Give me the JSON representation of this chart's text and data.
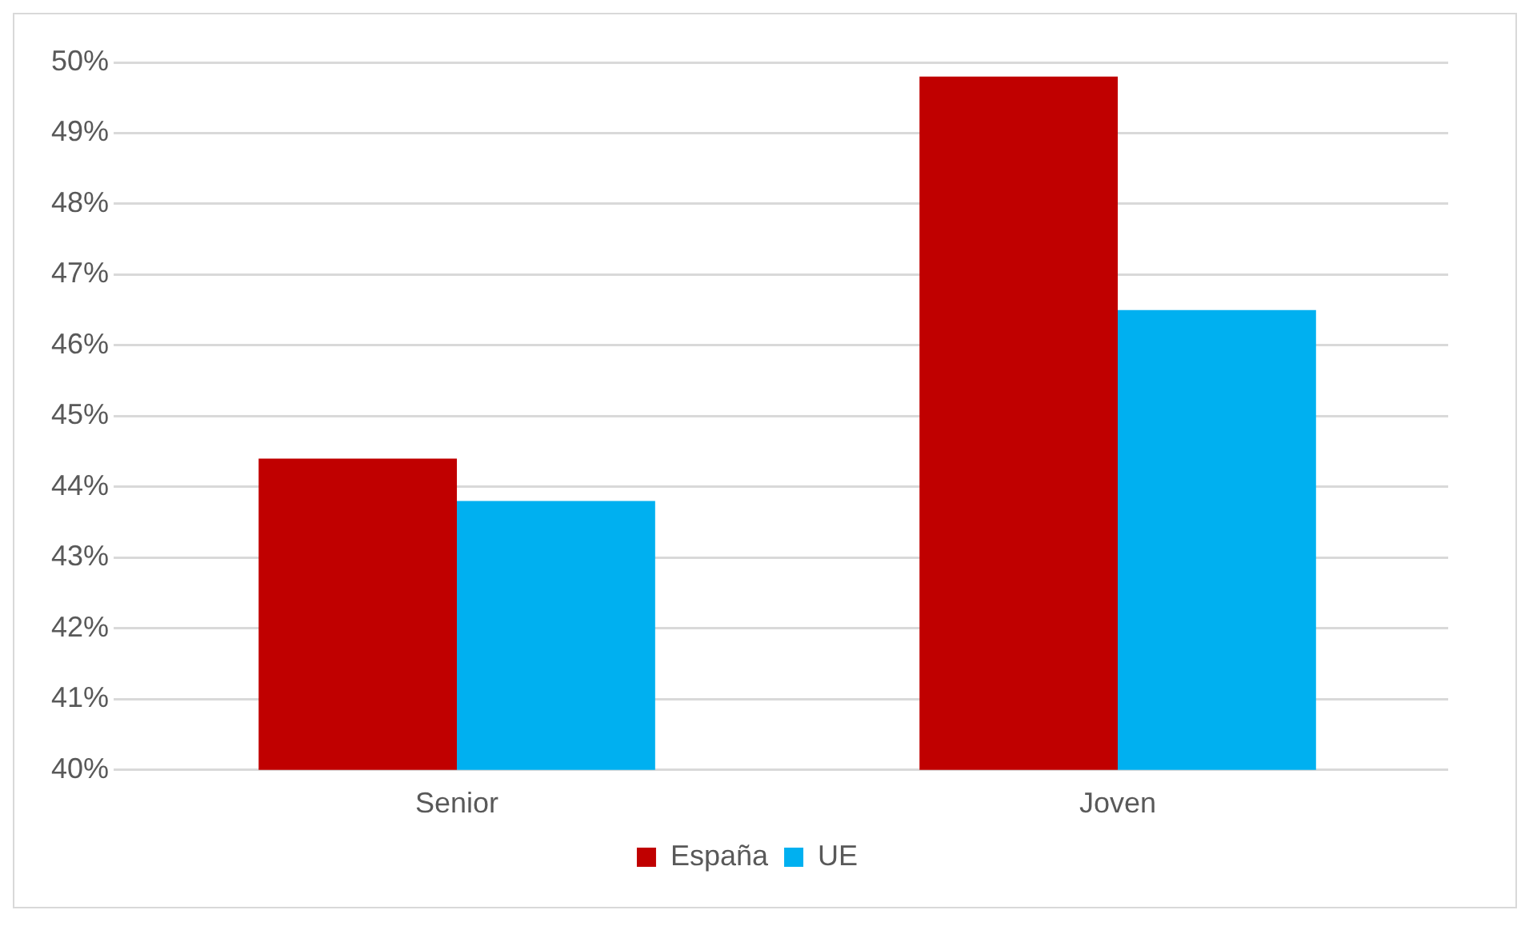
{
  "chart_data": {
    "type": "bar",
    "categories": [
      "Senior",
      "Joven"
    ],
    "series": [
      {
        "name": "España",
        "color": "#c00000",
        "values": [
          44.4,
          49.8
        ]
      },
      {
        "name": "UE",
        "color": "#00b0f0",
        "values": [
          43.8,
          46.5
        ]
      }
    ],
    "ylim": [
      40,
      50
    ],
    "yticks": [
      {
        "value": 40,
        "label": "40%"
      },
      {
        "value": 41,
        "label": "41%"
      },
      {
        "value": 42,
        "label": "42%"
      },
      {
        "value": 43,
        "label": "43%"
      },
      {
        "value": 44,
        "label": "44%"
      },
      {
        "value": 45,
        "label": "45%"
      },
      {
        "value": 46,
        "label": "46%"
      },
      {
        "value": 47,
        "label": "47%"
      },
      {
        "value": 48,
        "label": "48%"
      },
      {
        "value": 49,
        "label": "49%"
      },
      {
        "value": 50,
        "label": "50%"
      }
    ],
    "grid": "y",
    "legend": "bottom"
  }
}
